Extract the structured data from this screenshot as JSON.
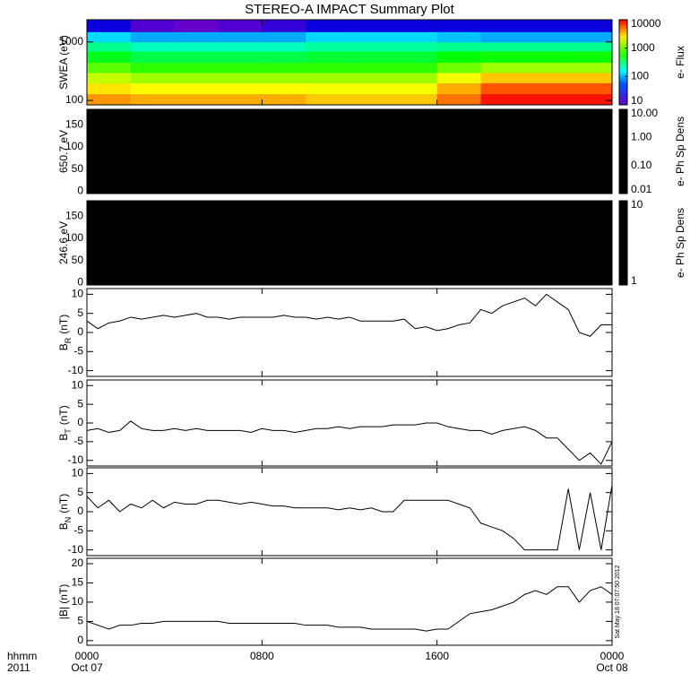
{
  "title": "STEREO-A IMPACT Summary Plot",
  "chart_data": [
    {
      "type": "heatmap",
      "ylabel": "SWEA (eV)",
      "log": true,
      "xlim": [
        0,
        24
      ],
      "ylim": [
        84,
        2400
      ],
      "yticks": [
        100,
        1000
      ],
      "x_bins": [
        0,
        2,
        4,
        6,
        8,
        10,
        12,
        14,
        16,
        18,
        20,
        22,
        24
      ],
      "y_bins": [
        84,
        130,
        200,
        300,
        450,
        700,
        1000,
        1500,
        2400
      ],
      "z": [
        [
          4000,
          3500,
          3500,
          3500,
          3500,
          3000,
          3000,
          3000,
          5000,
          9000,
          9000,
          9000
        ],
        [
          2500,
          2200,
          2200,
          2200,
          2200,
          2000,
          2000,
          2000,
          3500,
          6000,
          6000,
          6000
        ],
        [
          1500,
          1200,
          1200,
          1200,
          1200,
          1200,
          1200,
          1200,
          2000,
          3000,
          3000,
          3000
        ],
        [
          800,
          600,
          600,
          600,
          600,
          600,
          600,
          600,
          900,
          1200,
          1200,
          1200
        ],
        [
          400,
          300,
          300,
          300,
          300,
          350,
          350,
          350,
          450,
          500,
          500,
          500
        ],
        [
          200,
          150,
          150,
          150,
          150,
          180,
          180,
          180,
          200,
          200,
          200,
          200
        ],
        [
          80,
          60,
          60,
          60,
          60,
          80,
          80,
          80,
          70,
          60,
          60,
          60
        ],
        [
          20,
          12,
          10,
          12,
          15,
          20,
          20,
          20,
          20,
          20,
          20,
          20
        ]
      ],
      "zlim": [
        10,
        10000
      ],
      "zticks": [
        10,
        100,
        1000,
        10000
      ],
      "zlabel": "e- Flux"
    },
    {
      "type": "blank",
      "fill": "#000000",
      "ylabel": "650.7 eV",
      "xlim": [
        0,
        24
      ],
      "ylim": [
        -5,
        185
      ],
      "yticks": [
        0,
        50,
        100,
        150
      ],
      "zlim": [
        0.01,
        10
      ],
      "zticks": [
        {
          "value": 0.01,
          "label": "0.01"
        },
        {
          "value": 0.1,
          "label": "0.10"
        },
        {
          "value": 1,
          "label": "1.00"
        },
        {
          "value": 10,
          "label": "10.00"
        }
      ],
      "zlabel": "e- Ph Sp Dens"
    },
    {
      "type": "blank",
      "fill": "#000000",
      "ylabel": "246.6 eV",
      "xlim": [
        0,
        24
      ],
      "ylim": [
        -5,
        185
      ],
      "yticks": [
        0,
        50,
        100,
        150
      ],
      "zlim": [
        1,
        10
      ],
      "zticks": [
        1,
        10
      ],
      "zlabel": "e- Ph Sp Dens"
    },
    {
      "type": "line",
      "ylabel": "B",
      "ylabel_sub": "R",
      "yunit": "(nT)",
      "xlim": [
        0,
        24
      ],
      "ylim": [
        -11.5,
        11.5
      ],
      "yticks": [
        -10,
        -5,
        0,
        5,
        10
      ],
      "x": [
        0,
        0.5,
        1,
        1.5,
        2,
        2.5,
        3,
        3.5,
        4,
        4.5,
        5,
        5.5,
        6,
        6.5,
        7,
        7.5,
        8,
        8.5,
        9,
        9.5,
        10,
        10.5,
        11,
        11.5,
        12,
        12.5,
        13,
        13.5,
        14,
        14.5,
        15,
        15.5,
        16,
        16.5,
        17,
        17.5,
        18,
        18.5,
        19,
        19.5,
        20,
        20.5,
        21,
        21.5,
        22,
        22.5,
        23,
        23.5,
        24
      ],
      "series": [
        {
          "color": "#000000",
          "values": [
            3,
            1,
            2.5,
            3,
            4,
            3.5,
            4,
            4.5,
            4,
            4.5,
            5,
            4,
            4,
            3.5,
            4,
            4,
            4,
            4,
            4.5,
            4,
            4,
            3.5,
            4,
            3.5,
            4,
            3,
            3,
            3,
            3,
            3.5,
            1,
            1.5,
            0.5,
            1,
            2,
            2.5,
            6,
            5,
            7,
            8,
            9,
            7,
            10,
            8,
            6,
            0,
            -1,
            2,
            2
          ]
        }
      ]
    },
    {
      "type": "line",
      "ylabel": "B",
      "ylabel_sub": "T",
      "yunit": "(nT)",
      "xlim": [
        0,
        24
      ],
      "ylim": [
        -11.5,
        11.5
      ],
      "yticks": [
        -10,
        -5,
        0,
        5,
        10
      ],
      "x": [
        0,
        0.5,
        1,
        1.5,
        2,
        2.5,
        3,
        3.5,
        4,
        4.5,
        5,
        5.5,
        6,
        6.5,
        7,
        7.5,
        8,
        8.5,
        9,
        9.5,
        10,
        10.5,
        11,
        11.5,
        12,
        12.5,
        13,
        13.5,
        14,
        14.5,
        15,
        15.5,
        16,
        16.5,
        17,
        17.5,
        18,
        18.5,
        19,
        19.5,
        20,
        20.5,
        21,
        21.5,
        22,
        22.5,
        23,
        23.5,
        24
      ],
      "series": [
        {
          "color": "#000000",
          "values": [
            -2,
            -1.5,
            -2.5,
            -2,
            0.5,
            -1.5,
            -2,
            -2,
            -1.5,
            -2,
            -1.5,
            -2,
            -2,
            -2,
            -2,
            -2.5,
            -1.5,
            -2,
            -2,
            -2.5,
            -2,
            -1.5,
            -1.5,
            -1,
            -1.5,
            -1,
            -1,
            -1,
            -0.5,
            -0.5,
            -0.5,
            0,
            0,
            -1,
            -1.5,
            -2,
            -2,
            -3,
            -2,
            -1.5,
            -1,
            -2,
            -4,
            -4,
            -7,
            -10,
            -8,
            -11,
            -5
          ]
        }
      ]
    },
    {
      "type": "line",
      "ylabel": "B",
      "ylabel_sub": "N",
      "yunit": "(nT)",
      "xlim": [
        0,
        24
      ],
      "ylim": [
        -11.5,
        11.5
      ],
      "yticks": [
        -10,
        -5,
        0,
        5,
        10
      ],
      "x": [
        0,
        0.5,
        1,
        1.5,
        2,
        2.5,
        3,
        3.5,
        4,
        4.5,
        5,
        5.5,
        6,
        6.5,
        7,
        7.5,
        8,
        8.5,
        9,
        9.5,
        10,
        10.5,
        11,
        11.5,
        12,
        12.5,
        13,
        13.5,
        14,
        14.5,
        15,
        15.5,
        16,
        16.5,
        17,
        17.5,
        18,
        18.5,
        19,
        19.5,
        20,
        20.5,
        21,
        21.5,
        22,
        22.5,
        23,
        23.5,
        24
      ],
      "series": [
        {
          "color": "#000000",
          "values": [
            4,
            1,
            3,
            0,
            2,
            1,
            3,
            1,
            2.5,
            2,
            2,
            3,
            3,
            2.5,
            2,
            2.5,
            2,
            1.5,
            1.5,
            1,
            1,
            1,
            1,
            0.5,
            1,
            0.5,
            1,
            0,
            0,
            3,
            3,
            3,
            3,
            3,
            2,
            1,
            -3,
            -4,
            -5,
            -7,
            -10,
            -10,
            -10,
            -10,
            6,
            -10,
            5,
            -10,
            7
          ]
        }
      ]
    },
    {
      "type": "line",
      "ylabel": "|B| (nT)",
      "xlim": [
        0,
        24
      ],
      "ylim": [
        -1.2,
        21.4
      ],
      "yticks": [
        0,
        5,
        10,
        15,
        20
      ],
      "x": [
        0,
        0.5,
        1,
        1.5,
        2,
        2.5,
        3,
        3.5,
        4,
        4.5,
        5,
        5.5,
        6,
        6.5,
        7,
        7.5,
        8,
        8.5,
        9,
        9.5,
        10,
        10.5,
        11,
        11.5,
        12,
        12.5,
        13,
        13.5,
        14,
        14.5,
        15,
        15.5,
        16,
        16.5,
        17,
        17.5,
        18,
        18.5,
        19,
        19.5,
        20,
        20.5,
        21,
        21.5,
        22,
        22.5,
        23,
        23.5,
        24
      ],
      "series": [
        {
          "color": "#000000",
          "values": [
            5,
            4,
            3,
            4,
            4,
            4.5,
            4.5,
            5,
            5,
            5,
            5,
            5,
            5,
            4.5,
            4.5,
            4.5,
            4.5,
            4.5,
            4.5,
            4.5,
            4,
            4,
            4,
            3.5,
            3.5,
            3.5,
            3,
            3,
            3,
            3,
            3,
            2.5,
            3,
            3,
            5,
            7,
            7.5,
            8,
            9,
            10,
            12,
            13,
            12,
            14,
            14,
            10,
            13,
            14,
            12
          ]
        }
      ],
      "xticks": [
        {
          "value": 0,
          "label": "0000"
        },
        {
          "value": 8,
          "label": "0800"
        },
        {
          "value": 16,
          "label": "1600"
        },
        {
          "value": 24,
          "label": "0000"
        }
      ],
      "date_labels": [
        {
          "value": 0,
          "label": "Oct 07"
        },
        {
          "value": 24,
          "label": "Oct 08"
        }
      ],
      "x_axis_title": [
        "hhmm",
        "2011"
      ],
      "annotation": "Sat May 18 07:07:50 2012"
    }
  ]
}
